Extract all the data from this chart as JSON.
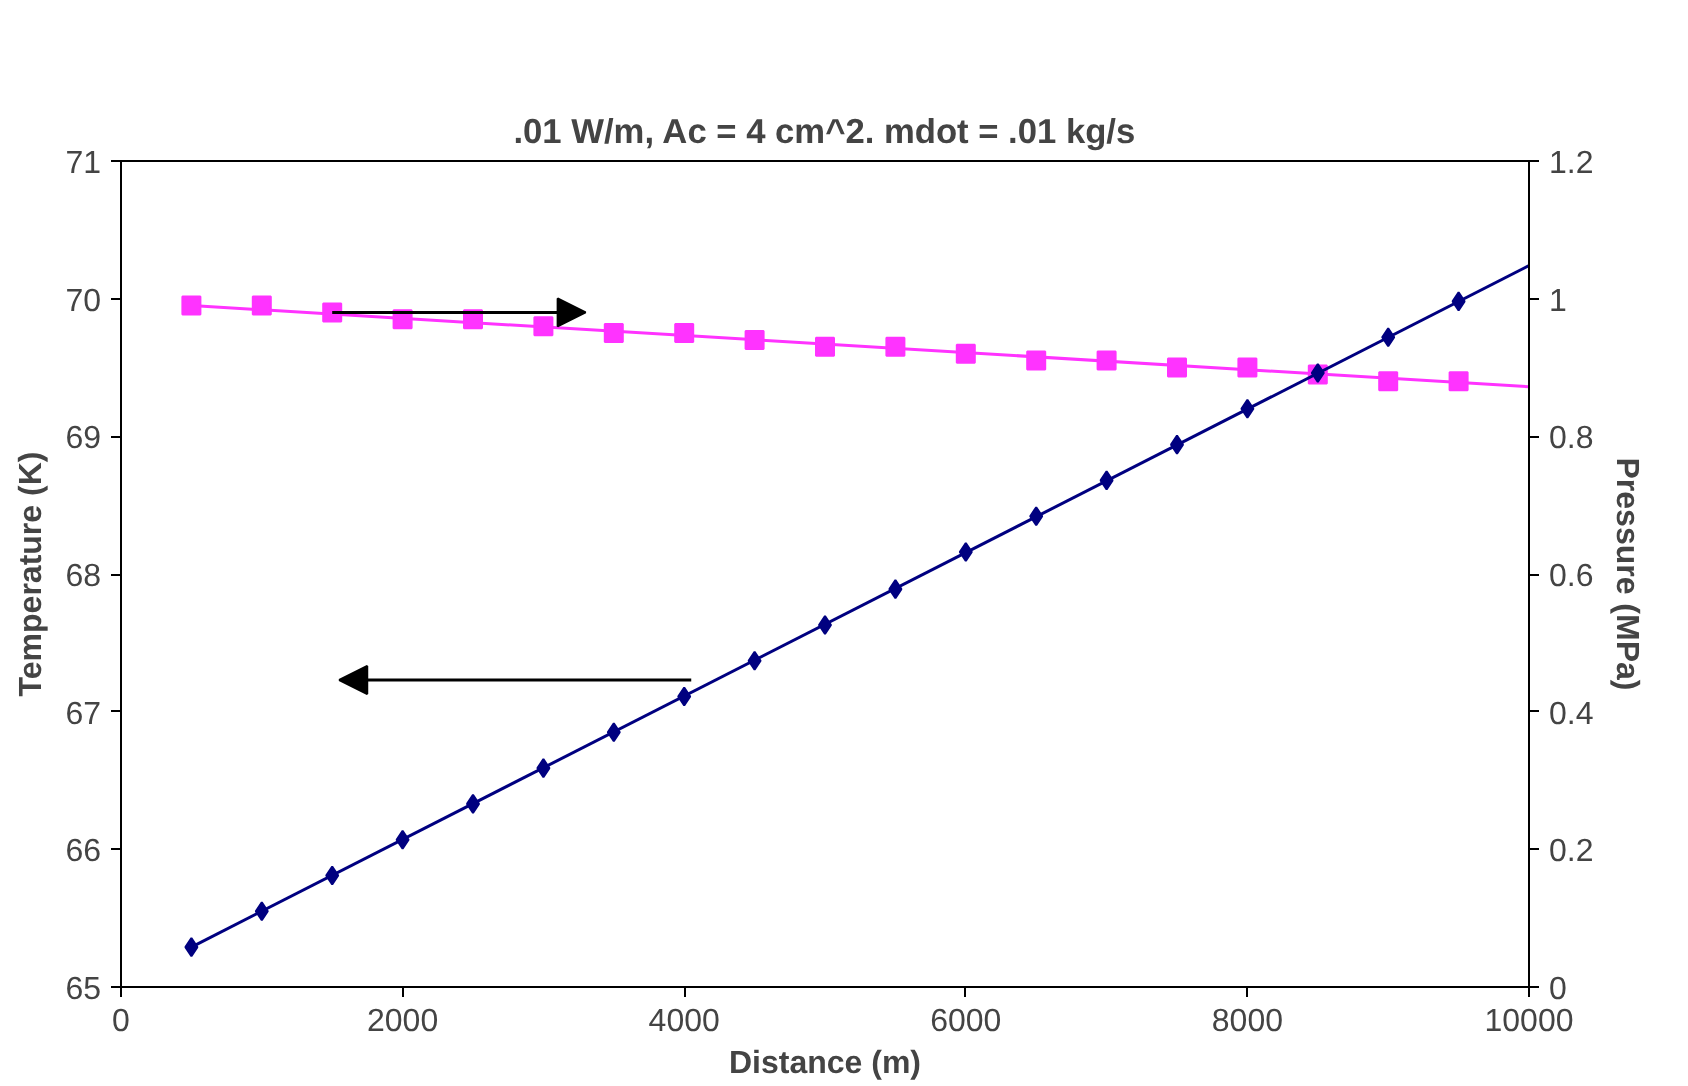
{
  "chart_data": {
    "type": "scatter",
    "title": ".01 W/m, Ac = 4 cm^2. mdot = .01 kg/s",
    "xlabel": "Distance (m)",
    "ylabel": "Temperature (K)",
    "y2label": "Pressure (MPa)",
    "xlim": [
      0,
      10000
    ],
    "xticks": [
      0,
      2000,
      4000,
      6000,
      8000,
      10000
    ],
    "ylim": [
      65,
      71
    ],
    "yticks": [
      65,
      66,
      67,
      68,
      69,
      70,
      71
    ],
    "y2lim": [
      0,
      1.2
    ],
    "y2ticks": [
      0,
      0.2,
      0.4,
      0.6,
      0.8,
      1,
      1.2
    ],
    "grid": false,
    "series": [
      {
        "type": "line",
        "marker": "none",
        "axis": "y2",
        "color": "#ff33ff",
        "x": [
          500,
          10000
        ],
        "values": [
          0.99,
          0.872
        ]
      },
      {
        "marker": "square",
        "axis": "y2",
        "color": "#ff33ff",
        "x": [
          500,
          1000,
          1500,
          2000,
          2500,
          3000,
          3500,
          4000,
          4500,
          5000,
          5500,
          6000,
          6500,
          7000,
          7500,
          8000,
          8500,
          9000,
          9500
        ],
        "values": [
          0.99,
          0.99,
          0.98,
          0.97,
          0.97,
          0.96,
          0.95,
          0.95,
          0.94,
          0.93,
          0.93,
          0.92,
          0.91,
          0.91,
          0.9,
          0.9,
          0.89,
          0.88,
          0.88
        ]
      },
      {
        "type": "line",
        "marker": "none",
        "color": "#000080",
        "x": [
          500,
          10000
        ],
        "values": [
          65.29,
          70.24
        ]
      },
      {
        "marker": "diamond",
        "color": "#000080",
        "x": [
          500,
          1000,
          1500,
          2000,
          2500,
          3000,
          3500,
          4000,
          4500,
          5000,
          5500,
          6000,
          6500,
          7000,
          7500,
          8000,
          8500,
          9000,
          9500
        ],
        "values": [
          65.29,
          65.55,
          65.81,
          66.07,
          66.33,
          66.59,
          66.85,
          67.11,
          67.37,
          67.63,
          67.89,
          68.16,
          68.42,
          68.68,
          68.94,
          69.2,
          69.46,
          69.72,
          69.98
        ]
      }
    ]
  }
}
